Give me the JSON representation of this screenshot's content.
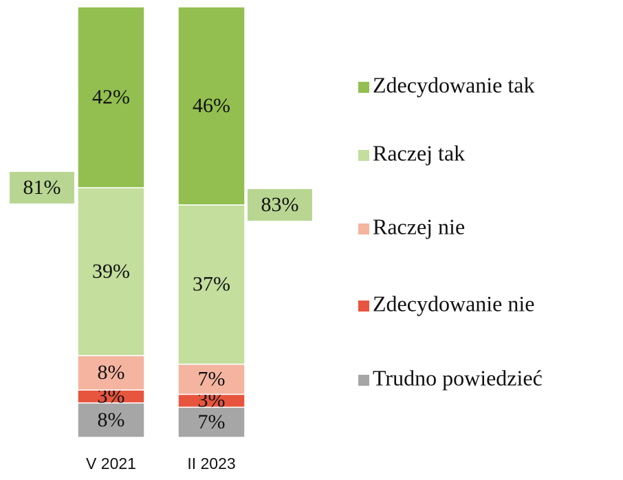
{
  "chart_data": {
    "type": "stacked_bar",
    "categories": [
      "V 2021",
      "II 2023"
    ],
    "ylim": [
      0,
      100
    ],
    "series": [
      {
        "name": "Zdecydowanie tak",
        "color": "#92bf4f",
        "values": [
          42,
          46
        ],
        "value_labels": [
          "42%",
          "46%"
        ]
      },
      {
        "name": "Raczej tak",
        "color": "#c3de9d",
        "values": [
          39,
          37
        ],
        "value_labels": [
          "39%",
          "37%"
        ]
      },
      {
        "name": "Raczej nie",
        "color": "#f4b4a0",
        "values": [
          8,
          7
        ],
        "value_labels": [
          "8%",
          "7%"
        ]
      },
      {
        "name": "Zdecydowanie nie",
        "color": "#e8553e",
        "values": [
          3,
          3
        ],
        "value_labels": [
          "3%",
          "3%"
        ]
      },
      {
        "name": "Trudno powiedzieć",
        "color": "#a6a6a6",
        "values": [
          8,
          7
        ],
        "value_labels": [
          "8%",
          "7%"
        ]
      }
    ],
    "annotations": [
      {
        "value": 81,
        "label": "81%"
      },
      {
        "value": 83,
        "label": "83%"
      }
    ],
    "annotation_color": "#b8d692"
  }
}
